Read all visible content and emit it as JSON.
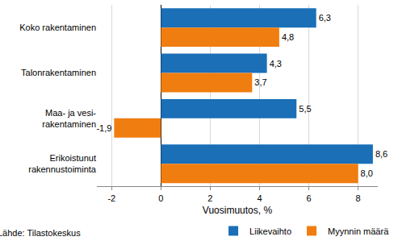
{
  "chart_data": {
    "type": "bar",
    "orientation": "horizontal",
    "categories": [
      "Koko rakentaminen",
      "Talonrakentaminen",
      "Maa- ja vesi-\nrakentaminen",
      "Erikoistunut\nrakennustoiminta"
    ],
    "series": [
      {
        "name": "Liikevaihto",
        "color": "#1a6fb7",
        "values": [
          6.3,
          4.3,
          5.5,
          8.6
        ],
        "value_labels": [
          "6,3",
          "4,3",
          "5,5",
          "8,6"
        ]
      },
      {
        "name": "Myynnin määrä",
        "color": "#f07d0f",
        "values": [
          4.8,
          3.7,
          -1.9,
          8.0
        ],
        "value_labels": [
          "4,8",
          "3,7",
          "-1,9",
          "8,0"
        ]
      }
    ],
    "x_label": "Vuosimuutos, %",
    "source": "Lähde: Tilastokeskus",
    "xlim": [
      -2.6,
      8.8
    ],
    "xticks": [
      -2,
      0,
      2,
      4,
      6,
      8
    ],
    "grid": true,
    "legend": "bottom right",
    "data_labels": true
  }
}
